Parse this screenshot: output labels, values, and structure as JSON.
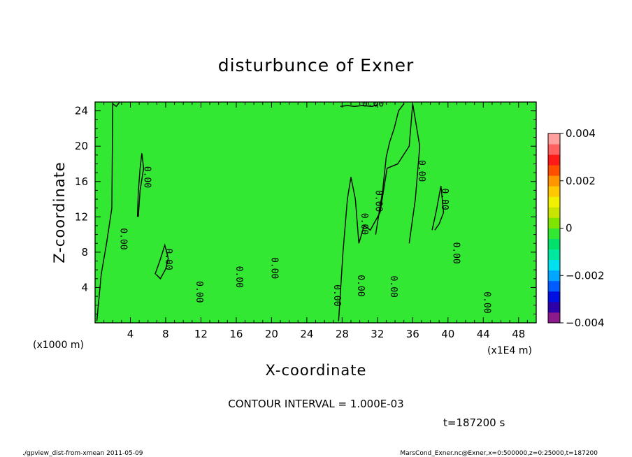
{
  "chart_data": {
    "type": "heatmap",
    "title": "disturbunce of Exner",
    "xlabel": "X-coordinate",
    "ylabel": "Z-coordinate",
    "x_unit": "(x1000 m)",
    "y_unit": "(x1E4 m)",
    "xlim": [
      0,
      50
    ],
    "ylim": [
      0,
      25
    ],
    "x_ticks": [
      4,
      8,
      12,
      16,
      20,
      24,
      28,
      32,
      36,
      40,
      44,
      48
    ],
    "y_ticks": [
      4,
      8,
      12,
      16,
      20,
      24
    ],
    "dominant_value": 0,
    "contour_interval_label": "CONTOUR INTERVAL = 1.000E-03",
    "contour_label": "0.00",
    "colorbar": {
      "min": -0.004,
      "max": 0.004,
      "tick_values": [
        0.004,
        0.002,
        0,
        -0.002,
        -0.004
      ],
      "tick_labels": [
        "0.004",
        "0.002",
        "0",
        "−0.002",
        "−0.004"
      ],
      "colors": [
        "#8b1a8b",
        "#2d00a8",
        "#0010e0",
        "#005cff",
        "#00a6ff",
        "#00e0ee",
        "#00e8a0",
        "#00e06a",
        "#33e833",
        "#7fe400",
        "#c8e400",
        "#f0f000",
        "#ffc800",
        "#ff9600",
        "#ff5000",
        "#ff1a1a",
        "#ff6060",
        "#ffa0a0"
      ]
    },
    "colors": {
      "field": "#33e833",
      "contour": "#000000",
      "background": "#ffffff"
    },
    "contours": [
      {
        "x": [
          0.2,
          0.7,
          1.3,
          1.9,
          2.0,
          2.4,
          2.8
        ],
        "y": [
          0.2,
          5.5,
          9,
          13,
          24.8,
          24.5,
          25
        ]
      },
      {
        "x": [
          4.8,
          4.9,
          5.1,
          5.3,
          5.5,
          5.1,
          4.9
        ],
        "y": [
          12,
          14.8,
          17.5,
          19.2,
          17.5,
          15,
          12
        ]
      },
      {
        "x": [
          6.8,
          7.4,
          7.9,
          8.3,
          8.0,
          7.4,
          6.9
        ],
        "y": [
          5.5,
          7.2,
          8.8,
          7.3,
          6.1,
          5.0,
          5.5
        ]
      },
      {
        "x": [
          27.6,
          28.1,
          28.6,
          29.0,
          29.5,
          29.9
        ],
        "y": [
          0.2,
          8,
          14,
          16.5,
          14,
          9
        ]
      },
      {
        "x": [
          29.9,
          30.5,
          31.2,
          32.3,
          33.1,
          34.3,
          35.6,
          36.0,
          36.8,
          36.3,
          35.6
        ],
        "y": [
          9,
          11,
          10.5,
          12.5,
          17.5,
          18,
          20,
          24.8,
          20,
          14,
          9
        ]
      },
      {
        "x": [
          31.8,
          32.6,
          33.0,
          33.4,
          33.9,
          34.4,
          35.0
        ],
        "y": [
          10,
          15,
          18.8,
          20.5,
          22,
          24,
          24.8
        ]
      },
      {
        "x": [
          38.2,
          38.7,
          39.2,
          39.5,
          39.0,
          38.5
        ],
        "y": [
          10.5,
          12.8,
          15.5,
          12.5,
          11.2,
          10.5
        ]
      },
      {
        "x": [
          27.8,
          28.6,
          29.4,
          30.3,
          31.4,
          32.0
        ],
        "y": [
          24.5,
          24.6,
          24.5,
          24.6,
          24.5,
          24.7
        ]
      }
    ],
    "labels": [
      {
        "x": 5.6,
        "y": 16.5,
        "rot": 90
      },
      {
        "x": 2.9,
        "y": 9.5,
        "rot": 90
      },
      {
        "x": 8.0,
        "y": 7.2,
        "rot": 90
      },
      {
        "x": 11.5,
        "y": 3.5,
        "rot": 90
      },
      {
        "x": 16.0,
        "y": 5.2,
        "rot": 90
      },
      {
        "x": 20.0,
        "y": 6.2,
        "rot": 90
      },
      {
        "x": 27.1,
        "y": 3.1,
        "rot": 90
      },
      {
        "x": 29.8,
        "y": 4.2,
        "rot": 90
      },
      {
        "x": 30.2,
        "y": 11.2,
        "rot": 90
      },
      {
        "x": 31.8,
        "y": 13.8,
        "rot": 90
      },
      {
        "x": 33.5,
        "y": 4.1,
        "rot": 90
      },
      {
        "x": 36.7,
        "y": 17.2,
        "rot": 90
      },
      {
        "x": 39.3,
        "y": 14.0,
        "rot": 90
      },
      {
        "x": 40.6,
        "y": 7.9,
        "rot": 90
      },
      {
        "x": 44.1,
        "y": 2.3,
        "rot": 90
      },
      {
        "x": 31.5,
        "y": 24.5,
        "rot": 0
      }
    ]
  },
  "title": "disturbunce of Exner",
  "xlabel": "X-coordinate",
  "ylabel": "Z-coordinate",
  "x_unit": "(x1000 m)",
  "y_unit": "(x1E4 m)",
  "contour_interval": "CONTOUR INTERVAL = 1.000E-03",
  "time_label": "t=187200 s",
  "footer_left": "./gpview_dist-from-xmean  2011-05-09",
  "footer_right": "MarsCond_Exner.nc@Exner,x=0:500000,z=0:25000,t=187200"
}
